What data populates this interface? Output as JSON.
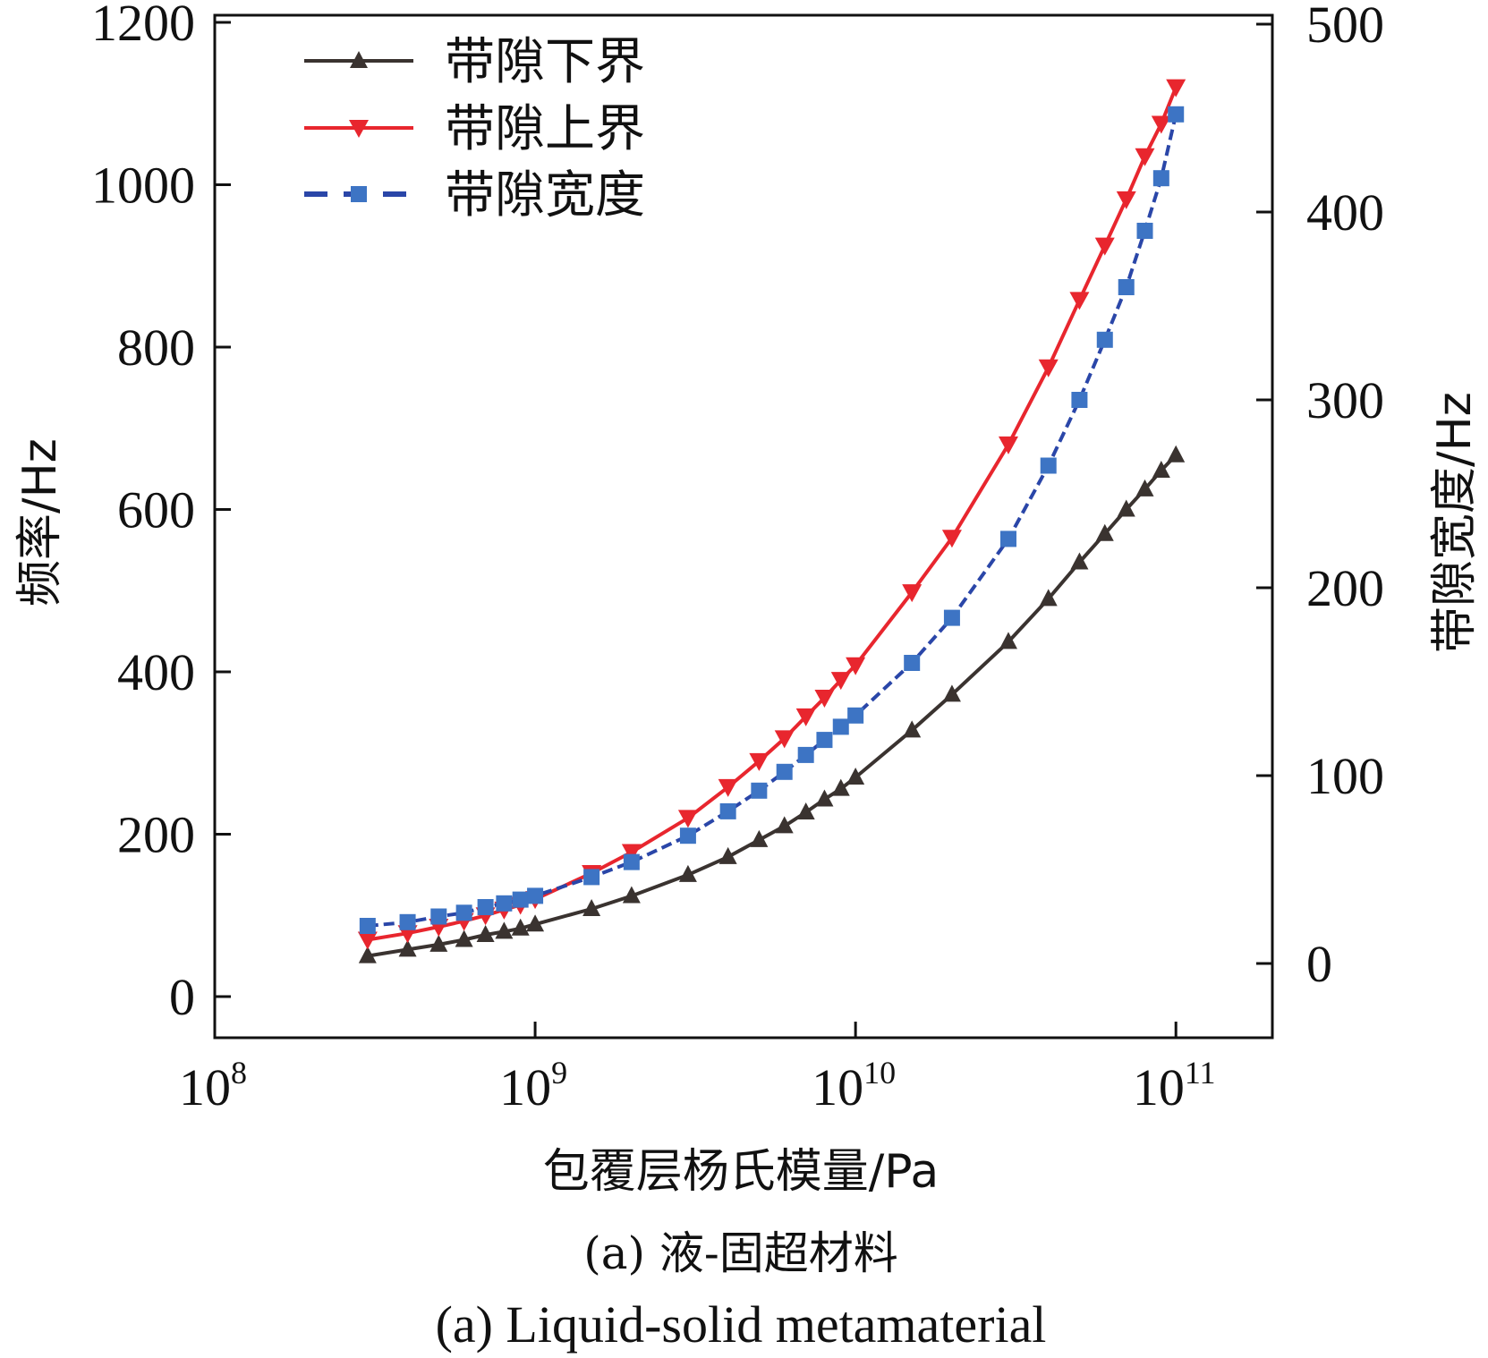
{
  "chart_data": {
    "type": "line",
    "xscale": "log",
    "xlim": [
      100000000.0,
      200000000000.0
    ],
    "xticks": [
      100000000.0,
      1000000000.0,
      10000000000.0,
      100000000000.0
    ],
    "xtick_labels": [
      {
        "base": "10",
        "exp": "8"
      },
      {
        "base": "10",
        "exp": "9"
      },
      {
        "base": "10",
        "exp": "10"
      },
      {
        "base": "10",
        "exp": "11"
      }
    ],
    "xlabel": "包覆层杨氏模量/Pa",
    "ylabel_left": "频率/Hz",
    "ylabel_right": "带隙宽度/Hz",
    "ylim_left": [
      -50,
      1210
    ],
    "yticks_left": [
      0,
      200,
      400,
      600,
      800,
      1000,
      1200
    ],
    "ylim_right": [
      -20,
      504
    ],
    "yticks_right": [
      0,
      100,
      200,
      300,
      400,
      500
    ],
    "grid": false,
    "legend_position": "top-left",
    "series": [
      {
        "name": "带隙下界",
        "axis": "left",
        "color": "#3a3330",
        "marker": "triangle-up",
        "x": [
          300000000.0,
          400000000.0,
          500000000.0,
          600000000.0,
          700000000.0,
          800000000.0,
          900000000.0,
          1000000000.0,
          1500000000.0,
          2000000000.0,
          3000000000.0,
          4000000000.0,
          5000000000.0,
          6000000000.0,
          7000000000.0,
          8000000000.0,
          9000000000.0,
          10000000000.0,
          15000000000.0,
          20000000000.0,
          30000000000.0,
          40000000000.0,
          50000000000.0,
          60000000000.0,
          70000000000.0,
          80000000000.0,
          90000000000.0,
          100000000000.0
        ],
        "y": [
          50,
          58,
          64,
          70,
          76,
          80,
          84,
          89,
          108,
          124,
          150,
          172,
          193,
          210,
          227,
          243,
          256,
          270,
          328,
          372,
          437,
          490,
          535,
          570,
          600,
          625,
          648,
          667
        ]
      },
      {
        "name": "带隙上界",
        "axis": "left",
        "color": "#e8262e",
        "marker": "triangle-down",
        "x": [
          300000000.0,
          400000000.0,
          500000000.0,
          600000000.0,
          700000000.0,
          800000000.0,
          900000000.0,
          1000000000.0,
          1500000000.0,
          2000000000.0,
          3000000000.0,
          4000000000.0,
          5000000000.0,
          6000000000.0,
          7000000000.0,
          8000000000.0,
          9000000000.0,
          10000000000.0,
          15000000000.0,
          20000000000.0,
          30000000000.0,
          40000000000.0,
          50000000000.0,
          60000000000.0,
          70000000000.0,
          80000000000.0,
          90000000000.0,
          100000000000.0
        ],
        "y": [
          70,
          78,
          86,
          93,
          100,
          107,
          113,
          120,
          152,
          178,
          220,
          258,
          290,
          318,
          345,
          368,
          390,
          408,
          498,
          565,
          680,
          775,
          858,
          925,
          982,
          1035,
          1075,
          1120
        ]
      },
      {
        "name": "带隙宽度",
        "axis": "right",
        "color": "#2a46a8",
        "marker_color": "#3d74c4",
        "marker": "square",
        "dashed": true,
        "x": [
          300000000.0,
          400000000.0,
          500000000.0,
          600000000.0,
          700000000.0,
          800000000.0,
          900000000.0,
          1000000000.0,
          1500000000.0,
          2000000000.0,
          3000000000.0,
          4000000000.0,
          5000000000.0,
          6000000000.0,
          7000000000.0,
          8000000000.0,
          9000000000.0,
          10000000000.0,
          15000000000.0,
          20000000000.0,
          30000000000.0,
          40000000000.0,
          50000000000.0,
          60000000000.0,
          70000000000.0,
          80000000000.0,
          90000000000.0,
          100000000000.0
        ],
        "y": [
          20,
          22,
          25,
          27,
          30,
          32,
          34,
          36,
          46,
          54,
          68,
          81,
          92,
          102,
          111,
          119,
          126,
          132,
          160,
          184,
          226,
          265,
          300,
          332,
          360,
          390,
          418,
          452
        ]
      }
    ]
  },
  "caption": {
    "line1": "(a) 液-固超材料",
    "line2": "(a) Liquid-solid metamaterial"
  }
}
